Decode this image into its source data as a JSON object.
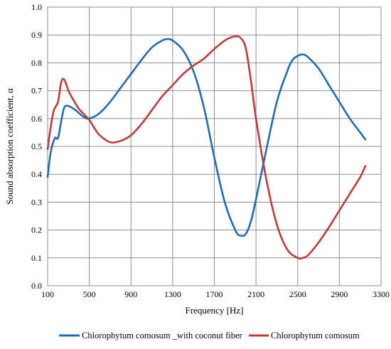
{
  "chart_data": {
    "type": "line",
    "title": "",
    "xlabel": "Frequency [Hz]",
    "ylabel": "Sound absorption coefficient, α",
    "xlim": [
      100,
      3300
    ],
    "ylim": [
      0,
      1.0
    ],
    "xticks": [
      "100",
      "500",
      "900",
      "1300",
      "1700",
      "2100",
      "2500",
      "2900",
      "3300"
    ],
    "yticks": [
      "0.0",
      "0.1",
      "0.2",
      "0.3",
      "0.4",
      "0.5",
      "0.6",
      "0.7",
      "0.8",
      "0.9",
      "1.0"
    ],
    "grid": true,
    "legend_position": "bottom",
    "series": [
      {
        "name": "Chlorophytum comosum _with coconut fiber",
        "color": "#1f6bb5",
        "x": [
          100,
          130,
          170,
          200,
          230,
          260,
          300,
          350,
          400,
          450,
          500,
          600,
          700,
          800,
          900,
          1000,
          1100,
          1200,
          1250,
          1300,
          1400,
          1500,
          1600,
          1700,
          1800,
          1900,
          1950,
          2000,
          2050,
          2100,
          2200,
          2300,
          2400,
          2450,
          2500,
          2550,
          2600,
          2700,
          2800,
          2900,
          3000,
          3100,
          3150
        ],
        "y": [
          0.39,
          0.48,
          0.53,
          0.53,
          0.59,
          0.64,
          0.645,
          0.635,
          0.62,
          0.605,
          0.6,
          0.62,
          0.66,
          0.71,
          0.76,
          0.81,
          0.855,
          0.88,
          0.885,
          0.88,
          0.845,
          0.77,
          0.64,
          0.46,
          0.3,
          0.2,
          0.18,
          0.185,
          0.23,
          0.31,
          0.49,
          0.66,
          0.77,
          0.81,
          0.825,
          0.83,
          0.82,
          0.78,
          0.72,
          0.66,
          0.6,
          0.55,
          0.525
        ]
      },
      {
        "name": "Chlorophytum comosum",
        "color": "#c0393b",
        "x": [
          100,
          130,
          160,
          200,
          230,
          260,
          300,
          350,
          400,
          450,
          500,
          550,
          600,
          700,
          800,
          900,
          1000,
          1100,
          1200,
          1300,
          1400,
          1500,
          1600,
          1700,
          1800,
          1850,
          1900,
          1950,
          2000,
          2050,
          2100,
          2200,
          2300,
          2400,
          2500,
          2550,
          2600,
          2700,
          2800,
          2900,
          3000,
          3100,
          3150
        ],
        "y": [
          0.49,
          0.57,
          0.63,
          0.66,
          0.73,
          0.74,
          0.7,
          0.665,
          0.635,
          0.615,
          0.595,
          0.565,
          0.54,
          0.515,
          0.52,
          0.54,
          0.58,
          0.63,
          0.68,
          0.72,
          0.76,
          0.79,
          0.815,
          0.85,
          0.88,
          0.89,
          0.895,
          0.89,
          0.855,
          0.74,
          0.6,
          0.38,
          0.22,
          0.13,
          0.1,
          0.1,
          0.11,
          0.155,
          0.21,
          0.27,
          0.33,
          0.39,
          0.43
        ]
      }
    ]
  }
}
